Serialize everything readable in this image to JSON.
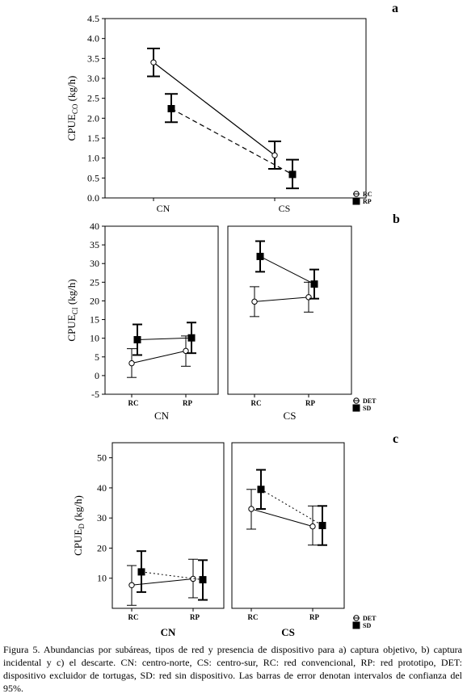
{
  "chart_data": [
    {
      "panel": "a",
      "type": "line",
      "ylabel": "CPUE",
      "ylabel_sub": "CO",
      "ylabel_tail": "(kg/h)",
      "ylim": [
        0,
        4.5
      ],
      "yticks": [
        0,
        0.5,
        1,
        1.5,
        2,
        2.5,
        3,
        3.5,
        4,
        4.5
      ],
      "ytick_labels": [
        "0.0",
        "0.5",
        "1.0",
        "1.5",
        "2.0",
        "2.5",
        "3.0",
        "3.5",
        "4.0",
        "4.5"
      ],
      "categories": [
        "CN",
        "CS"
      ],
      "series": [
        {
          "name": "RC",
          "marker": "open-circle",
          "line": "solid",
          "values": [
            3.4,
            1.07
          ],
          "lower": [
            3.05,
            0.73
          ],
          "upper": [
            3.75,
            1.42
          ]
        },
        {
          "name": "RP",
          "marker": "filled-square",
          "line": "dashed",
          "values": [
            2.24,
            0.59
          ],
          "lower": [
            1.9,
            0.24
          ],
          "upper": [
            2.61,
            0.96
          ]
        }
      ]
    },
    {
      "panel": "b",
      "type": "line",
      "ylabel": "CPUE",
      "ylabel_sub": "CI",
      "ylabel_tail": "(kg/h)",
      "ylim": [
        -5,
        40
      ],
      "yticks": [
        -5,
        0,
        5,
        10,
        15,
        20,
        25,
        30,
        35,
        40
      ],
      "ytick_labels": [
        "-5",
        "0",
        "5",
        "10",
        "15",
        "20",
        "25",
        "30",
        "35",
        "40"
      ],
      "x_categories": [
        "RC",
        "RP"
      ],
      "groups": [
        "CN",
        "CS"
      ],
      "series": [
        {
          "name": "DET",
          "marker": "open-circle",
          "line": "solid",
          "values": {
            "CN": [
              3.3,
              6.6
            ],
            "CS": [
              19.8,
              21.0
            ]
          },
          "lower": {
            "CN": [
              -0.5,
              2.5
            ],
            "CS": [
              15.8,
              17.0
            ]
          },
          "upper": {
            "CN": [
              7.2,
              10.6
            ],
            "CS": [
              23.8,
              25.0
            ]
          }
        },
        {
          "name": "SD",
          "marker": "filled-square",
          "line": "solid",
          "values": {
            "CN": [
              9.6,
              10.1
            ],
            "CS": [
              31.9,
              24.5
            ]
          },
          "lower": {
            "CN": [
              5.5,
              6.0
            ],
            "CS": [
              27.8,
              20.6
            ]
          },
          "upper": {
            "CN": [
              13.7,
              14.2
            ],
            "CS": [
              36.0,
              28.4
            ]
          }
        }
      ]
    },
    {
      "panel": "c",
      "type": "line",
      "ylabel": "CPUE",
      "ylabel_sub": "D",
      "ylabel_tail": "(kg/h)",
      "ylim": [
        0,
        55
      ],
      "yticks": [
        10,
        20,
        30,
        40,
        50
      ],
      "ytick_labels": [
        "10",
        "20",
        "30",
        "40",
        "50"
      ],
      "x_categories": [
        "RC",
        "RP"
      ],
      "groups": [
        "CN",
        "CS"
      ],
      "series": [
        {
          "name": "DET",
          "marker": "open-circle",
          "line": "solid",
          "values": {
            "CN": [
              7.7,
              9.8
            ],
            "CS": [
              33.0,
              27.2
            ]
          },
          "lower": {
            "CN": [
              1.0,
              3.5
            ],
            "CS": [
              26.3,
              21.0
            ]
          },
          "upper": {
            "CN": [
              14.2,
              16.3
            ],
            "CS": [
              39.5,
              34.0
            ]
          }
        },
        {
          "name": "SD",
          "marker": "filled-square",
          "line": "dotted",
          "values": {
            "CN": [
              12.1,
              9.5
            ],
            "CS": [
              39.5,
              27.5
            ]
          },
          "lower": {
            "CN": [
              5.4,
              2.8
            ],
            "CS": [
              33.0,
              21.0
            ]
          },
          "upper": {
            "CN": [
              19.0,
              16.0
            ],
            "CS": [
              46.0,
              34.0
            ]
          }
        }
      ]
    }
  ],
  "caption": "Figura 5. Abundancias por subáreas, tipos de red y presencia de dispositivo para a) captura objetivo, b) captura incidental y c) el descarte. CN: centro-norte, CS: centro-sur, RC: red convencional, RP: red prototipo, DET: dispositivo excluidor de tortugas, SD: red sin dispositivo. Las barras de error denotan intervalos de confianza del 95%."
}
